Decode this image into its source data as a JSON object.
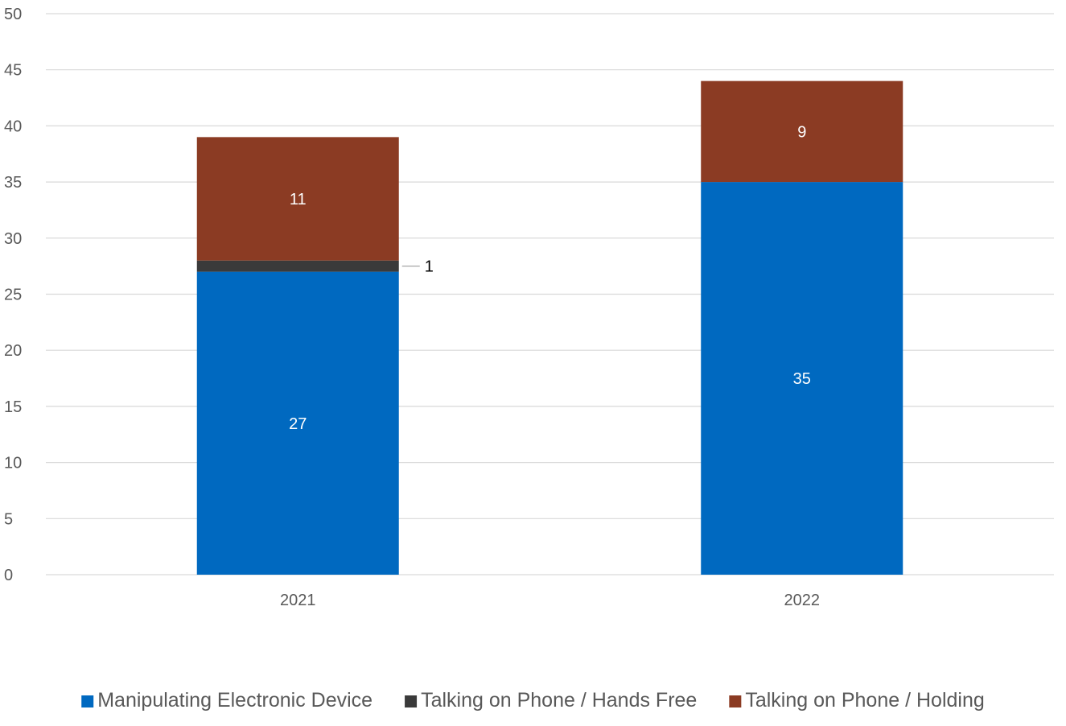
{
  "chart_data": {
    "type": "bar",
    "stacked": true,
    "categories": [
      "2021",
      "2022"
    ],
    "series": [
      {
        "name": "Manipulating Electronic Device",
        "values": [
          27,
          35
        ],
        "color": "#0069c0",
        "label_color": "#ffffff"
      },
      {
        "name": "Talking on Phone / Hands Free",
        "values": [
          1,
          0
        ],
        "color": "#3a3a3a",
        "label_color": "#000000"
      },
      {
        "name": "Talking on Phone / Holding",
        "values": [
          11,
          9
        ],
        "color": "#8b3b23",
        "label_color": "#ffffff"
      }
    ],
    "data_labels": [
      [
        "27",
        "35"
      ],
      [
        "1",
        null
      ],
      [
        "11",
        "9"
      ]
    ],
    "y_ticks": [
      "0",
      "5",
      "10",
      "15",
      "20",
      "25",
      "30",
      "35",
      "40",
      "45",
      "50"
    ],
    "ylim": [
      0,
      50
    ],
    "grid": true,
    "legend_position": "bottom",
    "axis_color": "#595959",
    "grid_color": "#d9d9d9"
  }
}
